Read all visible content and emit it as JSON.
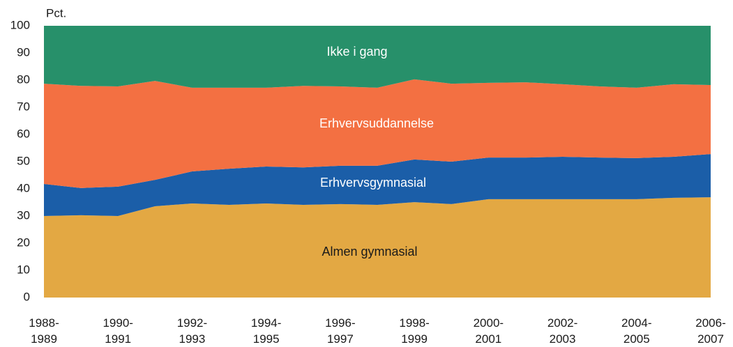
{
  "chart_data": {
    "type": "stacked_area",
    "ylabel": "Pct.",
    "categories": [
      "1988-1989",
      null,
      "1990-1991",
      null,
      "1992-1993",
      null,
      "1994-1995",
      null,
      "1996-1997",
      null,
      "1998-1999",
      null,
      "2000-2001",
      null,
      "2002-2003",
      null,
      "2004-2005",
      null,
      "2006-2007"
    ],
    "ylim": [
      0,
      100
    ],
    "yticks": [
      0,
      10,
      20,
      30,
      40,
      50,
      60,
      70,
      80,
      90,
      100
    ],
    "grid": false,
    "series": [
      {
        "name": "Almen gymnasial",
        "color": "#e3a843",
        "values": [
          30.0,
          30.3,
          30.0,
          33.6,
          34.6,
          34.1,
          34.6,
          34.1,
          34.4,
          34.1,
          35.1,
          34.4,
          36.2,
          36.2,
          36.2,
          36.2,
          36.2,
          36.7,
          36.9
        ]
      },
      {
        "name": "Erhvervsgymnasial",
        "color": "#1b5ea8",
        "values": [
          11.8,
          10.0,
          10.8,
          9.7,
          11.8,
          13.3,
          13.6,
          13.8,
          14.1,
          14.4,
          15.7,
          15.6,
          15.3,
          15.3,
          15.6,
          15.3,
          15.1,
          15.1,
          15.9
        ]
      },
      {
        "name": "Erhvervsuddannelse",
        "color": "#f37042",
        "values": [
          36.9,
          37.6,
          36.9,
          36.4,
          30.8,
          29.8,
          29.0,
          30.0,
          29.2,
          28.7,
          29.5,
          28.7,
          27.5,
          27.7,
          26.7,
          26.2,
          25.9,
          26.7,
          25.4
        ]
      },
      {
        "name": "Ikke i gang",
        "color": "#27906a",
        "values": [
          21.3,
          22.1,
          22.3,
          20.3,
          22.8,
          22.8,
          22.8,
          22.1,
          22.3,
          22.8,
          19.7,
          21.3,
          21.0,
          20.8,
          21.5,
          22.3,
          22.8,
          21.5,
          21.8
        ]
      }
    ]
  }
}
